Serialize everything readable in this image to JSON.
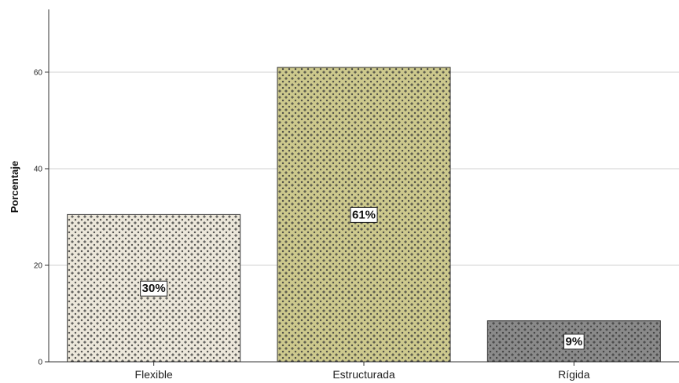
{
  "chart_data": {
    "type": "bar",
    "categories": [
      "Flexible",
      "Estructurada",
      "Rígida"
    ],
    "values": [
      30.5,
      61,
      8.5
    ],
    "data_labels": [
      "30%",
      "61%",
      "9%"
    ],
    "ylabel": "Porcentaje",
    "xlabel": "",
    "ylim": [
      0,
      73
    ],
    "yticks": [
      0,
      20,
      40,
      60
    ],
    "grid": "horizontal",
    "bar_colors": [
      "#ece7da",
      "#cdc98d",
      "#8a8a8a"
    ],
    "pattern_color": "#3a3a3a",
    "grid_color": "#d0d0d0"
  }
}
